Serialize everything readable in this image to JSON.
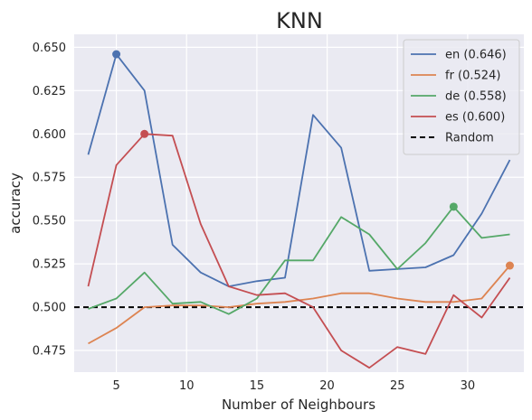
{
  "chart_data": {
    "type": "line",
    "title": "KNN",
    "xlabel": "Number of Neighbours",
    "ylabel": "accuracy",
    "xlim": [
      2,
      34
    ],
    "ylim": [
      0.4625,
      0.6575
    ],
    "xticks": [
      5,
      10,
      15,
      20,
      25,
      30
    ],
    "yticks": [
      0.475,
      0.5,
      0.525,
      0.55,
      0.575,
      0.6,
      0.625,
      0.65
    ],
    "ytick_labels": [
      "0.475",
      "0.500",
      "0.525",
      "0.550",
      "0.575",
      "0.600",
      "0.625",
      "0.650"
    ],
    "grid": true,
    "legend_position": "top-right",
    "x": [
      3,
      5,
      7,
      9,
      11,
      13,
      15,
      17,
      19,
      21,
      23,
      25,
      27,
      29,
      31,
      33
    ],
    "series": [
      {
        "name": "en (0.646)",
        "color": "#4c72b0",
        "values": [
          0.588,
          0.646,
          0.625,
          0.536,
          0.52,
          0.512,
          0.515,
          0.517,
          0.611,
          0.592,
          0.521,
          0.522,
          0.523,
          0.53,
          0.554,
          0.585
        ],
        "best": {
          "x": 5,
          "y": 0.646
        }
      },
      {
        "name": "fr (0.524)",
        "color": "#dd8452",
        "values": [
          0.479,
          0.488,
          0.5,
          0.501,
          0.501,
          0.5,
          0.502,
          0.503,
          0.505,
          0.508,
          0.508,
          0.505,
          0.503,
          0.503,
          0.505,
          0.524
        ],
        "best": {
          "x": 33,
          "y": 0.524
        }
      },
      {
        "name": "de (0.558)",
        "color": "#55a868",
        "values": [
          0.499,
          0.505,
          0.52,
          0.502,
          0.503,
          0.496,
          0.505,
          0.527,
          0.527,
          0.552,
          0.542,
          0.522,
          0.537,
          0.558,
          0.54,
          0.542
        ],
        "best": {
          "x": 29,
          "y": 0.558
        }
      },
      {
        "name": "es (0.600)",
        "color": "#c44e52",
        "values": [
          0.512,
          0.582,
          0.6,
          0.599,
          0.548,
          0.512,
          0.507,
          0.508,
          0.5,
          0.475,
          0.465,
          0.477,
          0.473,
          0.507,
          0.494,
          0.517
        ],
        "best": {
          "x": 7,
          "y": 0.6
        }
      }
    ],
    "reference_line": {
      "name": "Random",
      "y": 0.5,
      "color": "#000000",
      "style": "dashed"
    }
  }
}
